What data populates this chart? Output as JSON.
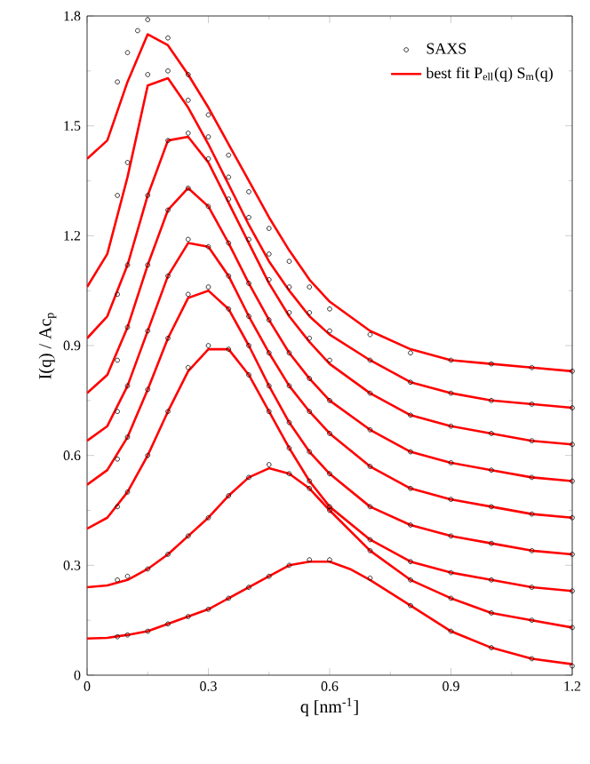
{
  "chart_data": {
    "type": "line",
    "xlabel": "q [nm$^{-1}$]",
    "ylabel": "I(q) / Ac$_{p}$",
    "xlim": [
      0,
      1.2
    ],
    "ylim": [
      0,
      1.8
    ],
    "xticks": [
      0,
      0.3,
      0.6,
      0.9,
      1.2
    ],
    "yticks": [
      0,
      0.3,
      0.6,
      0.9,
      1.2,
      1.5,
      1.8
    ],
    "legend": "top right",
    "grid": false,
    "series": [
      {
        "name": "SAXS",
        "type": "scatter",
        "marker": "circle",
        "color": "#000000",
        "x": [
          0.075,
          0.1,
          0.15,
          0.2,
          0.25,
          0.3,
          0.35,
          0.4,
          0.45,
          0.5,
          0.55,
          0.6,
          0.7,
          0.8,
          0.9,
          1.0,
          1.1,
          1.2
        ],
        "values": [
          0.105,
          0.11,
          0.12,
          0.14,
          0.16,
          0.18,
          0.21,
          0.24,
          0.27,
          0.3,
          0.315,
          0.315,
          0.265,
          0.19,
          0.12,
          0.075,
          0.045,
          0.025
        ]
      },
      {
        "type": "scatter",
        "marker": "circle",
        "color": "#000000",
        "x": [
          0.075,
          0.1,
          0.15,
          0.2,
          0.25,
          0.3,
          0.35,
          0.4,
          0.45,
          0.5,
          0.55,
          0.6,
          0.7,
          0.8,
          0.9,
          1.0,
          1.1,
          1.2
        ],
        "values": [
          0.26,
          0.27,
          0.29,
          0.33,
          0.38,
          0.43,
          0.49,
          0.54,
          0.575,
          0.55,
          0.51,
          0.45,
          0.34,
          0.26,
          0.21,
          0.17,
          0.15,
          0.13
        ]
      },
      {
        "type": "scatter",
        "marker": "circle",
        "color": "#000000",
        "x": [
          0.075,
          0.1,
          0.15,
          0.2,
          0.25,
          0.3,
          0.35,
          0.4,
          0.45,
          0.5,
          0.55,
          0.6,
          0.7,
          0.8,
          0.9,
          1.0,
          1.1,
          1.2
        ],
        "values": [
          0.46,
          0.5,
          0.6,
          0.72,
          0.84,
          0.9,
          0.89,
          0.82,
          0.72,
          0.62,
          0.53,
          0.46,
          0.37,
          0.31,
          0.28,
          0.26,
          0.24,
          0.23
        ]
      },
      {
        "type": "scatter",
        "marker": "circle",
        "color": "#000000",
        "x": [
          0.075,
          0.1,
          0.15,
          0.2,
          0.25,
          0.3,
          0.35,
          0.4,
          0.45,
          0.5,
          0.55,
          0.6,
          0.7,
          0.8,
          0.9,
          1.0,
          1.1,
          1.2
        ],
        "values": [
          0.59,
          0.65,
          0.78,
          0.92,
          1.04,
          1.06,
          1.0,
          0.9,
          0.79,
          0.69,
          0.61,
          0.55,
          0.46,
          0.41,
          0.38,
          0.36,
          0.34,
          0.33
        ]
      },
      {
        "type": "scatter",
        "marker": "circle",
        "color": "#000000",
        "x": [
          0.075,
          0.1,
          0.15,
          0.2,
          0.25,
          0.3,
          0.35,
          0.4,
          0.45,
          0.5,
          0.55,
          0.6,
          0.7,
          0.8,
          0.9,
          1.0,
          1.1,
          1.2
        ],
        "values": [
          0.72,
          0.79,
          0.94,
          1.09,
          1.19,
          1.17,
          1.09,
          0.98,
          0.88,
          0.79,
          0.72,
          0.66,
          0.57,
          0.51,
          0.48,
          0.46,
          0.44,
          0.43
        ]
      },
      {
        "type": "scatter",
        "marker": "circle",
        "color": "#000000",
        "x": [
          0.075,
          0.1,
          0.15,
          0.2,
          0.25,
          0.3,
          0.35,
          0.4,
          0.45,
          0.5,
          0.55,
          0.6,
          0.7,
          0.8,
          0.9,
          1.0,
          1.1,
          1.2
        ],
        "values": [
          0.86,
          0.95,
          1.12,
          1.27,
          1.33,
          1.28,
          1.18,
          1.07,
          0.97,
          0.88,
          0.81,
          0.75,
          0.67,
          0.61,
          0.58,
          0.56,
          0.54,
          0.53
        ]
      },
      {
        "type": "scatter",
        "marker": "circle",
        "color": "#000000",
        "x": [
          0.075,
          0.1,
          0.15,
          0.2,
          0.25,
          0.3,
          0.35,
          0.4,
          0.45,
          0.5,
          0.55,
          0.6,
          0.7,
          0.8,
          0.9,
          1.0,
          1.1,
          1.2
        ],
        "values": [
          1.04,
          1.12,
          1.31,
          1.46,
          1.48,
          1.41,
          1.3,
          1.19,
          1.08,
          0.99,
          0.92,
          0.86,
          0.77,
          0.71,
          0.68,
          0.66,
          0.64,
          0.63
        ]
      },
      {
        "type": "scatter",
        "marker": "circle",
        "color": "#000000",
        "x": [
          0.075,
          0.1,
          0.15,
          0.2,
          0.25,
          0.3,
          0.35,
          0.4,
          0.45,
          0.5,
          0.55,
          0.6,
          0.7,
          0.8,
          0.9,
          1.0,
          1.1,
          1.2
        ],
        "values": [
          1.31,
          1.4,
          1.64,
          1.65,
          1.57,
          1.47,
          1.36,
          1.25,
          1.15,
          1.06,
          0.99,
          0.94,
          0.86,
          0.8,
          0.77,
          0.75,
          0.74,
          0.73
        ]
      },
      {
        "type": "scatter",
        "marker": "circle",
        "color": "#000000",
        "x": [
          0.075,
          0.1,
          0.125,
          0.15,
          0.2,
          0.25,
          0.3,
          0.35,
          0.4,
          0.45,
          0.5,
          0.55,
          0.6,
          0.7,
          0.8,
          0.9,
          1.0,
          1.1,
          1.2
        ],
        "values": [
          1.62,
          1.7,
          1.76,
          1.79,
          1.74,
          1.64,
          1.53,
          1.42,
          1.32,
          1.22,
          1.13,
          1.06,
          1.0,
          0.93,
          0.88,
          0.86,
          0.85,
          0.84,
          0.83
        ]
      },
      {
        "name": "best fit P$_{ell}$(q) S$_{m}$(q)",
        "marker": "none",
        "line_style": "solid",
        "color": "#ff0000",
        "x": [
          0,
          0.05,
          0.1,
          0.15,
          0.2,
          0.25,
          0.3,
          0.35,
          0.4,
          0.45,
          0.5,
          0.55,
          0.6,
          0.65,
          0.7,
          0.8,
          0.9,
          1.0,
          1.1,
          1.2
        ],
        "values": [
          0.1,
          0.102,
          0.11,
          0.12,
          0.14,
          0.16,
          0.18,
          0.21,
          0.24,
          0.27,
          0.3,
          0.31,
          0.31,
          0.29,
          0.26,
          0.19,
          0.12,
          0.075,
          0.045,
          0.03
        ]
      },
      {
        "type": "line",
        "marker": "none",
        "line_style": "solid",
        "color": "#ff0000",
        "x": [
          0,
          0.05,
          0.1,
          0.15,
          0.2,
          0.25,
          0.3,
          0.35,
          0.4,
          0.45,
          0.5,
          0.55,
          0.6,
          0.7,
          0.8,
          0.9,
          1.0,
          1.1,
          1.2
        ],
        "values": [
          0.24,
          0.245,
          0.26,
          0.29,
          0.33,
          0.38,
          0.43,
          0.49,
          0.54,
          0.565,
          0.55,
          0.51,
          0.45,
          0.34,
          0.26,
          0.21,
          0.17,
          0.15,
          0.13
        ]
      },
      {
        "type": "line",
        "marker": "none",
        "line_style": "solid",
        "color": "#ff0000",
        "x": [
          0,
          0.05,
          0.1,
          0.15,
          0.2,
          0.25,
          0.3,
          0.35,
          0.4,
          0.45,
          0.5,
          0.55,
          0.6,
          0.7,
          0.8,
          0.9,
          1.0,
          1.1,
          1.2
        ],
        "values": [
          0.4,
          0.43,
          0.5,
          0.6,
          0.72,
          0.83,
          0.89,
          0.89,
          0.82,
          0.72,
          0.62,
          0.53,
          0.46,
          0.37,
          0.31,
          0.28,
          0.26,
          0.24,
          0.23
        ]
      },
      {
        "type": "line",
        "marker": "none",
        "line_style": "solid",
        "color": "#ff0000",
        "x": [
          0,
          0.05,
          0.1,
          0.15,
          0.2,
          0.25,
          0.3,
          0.35,
          0.4,
          0.45,
          0.5,
          0.55,
          0.6,
          0.7,
          0.8,
          0.9,
          1.0,
          1.1,
          1.2
        ],
        "values": [
          0.52,
          0.56,
          0.65,
          0.78,
          0.92,
          1.03,
          1.05,
          1.0,
          0.9,
          0.79,
          0.69,
          0.61,
          0.55,
          0.46,
          0.41,
          0.38,
          0.36,
          0.34,
          0.33
        ]
      },
      {
        "type": "line",
        "marker": "none",
        "line_style": "solid",
        "color": "#ff0000",
        "x": [
          0,
          0.05,
          0.1,
          0.15,
          0.2,
          0.25,
          0.3,
          0.35,
          0.4,
          0.45,
          0.5,
          0.55,
          0.6,
          0.7,
          0.8,
          0.9,
          1.0,
          1.1,
          1.2
        ],
        "values": [
          0.64,
          0.68,
          0.79,
          0.94,
          1.09,
          1.18,
          1.17,
          1.09,
          0.98,
          0.88,
          0.79,
          0.72,
          0.66,
          0.57,
          0.51,
          0.48,
          0.46,
          0.44,
          0.43
        ]
      },
      {
        "type": "line",
        "marker": "none",
        "line_style": "solid",
        "color": "#ff0000",
        "x": [
          0,
          0.05,
          0.1,
          0.15,
          0.2,
          0.25,
          0.3,
          0.35,
          0.4,
          0.45,
          0.5,
          0.55,
          0.6,
          0.7,
          0.8,
          0.9,
          1.0,
          1.1,
          1.2
        ],
        "values": [
          0.77,
          0.82,
          0.95,
          1.12,
          1.27,
          1.33,
          1.28,
          1.18,
          1.07,
          0.97,
          0.88,
          0.81,
          0.75,
          0.67,
          0.61,
          0.58,
          0.56,
          0.54,
          0.53
        ]
      },
      {
        "type": "line",
        "marker": "none",
        "line_style": "solid",
        "color": "#ff0000",
        "x": [
          0,
          0.05,
          0.1,
          0.15,
          0.2,
          0.25,
          0.3,
          0.35,
          0.4,
          0.45,
          0.5,
          0.55,
          0.6,
          0.7,
          0.8,
          0.9,
          1.0,
          1.1,
          1.2
        ],
        "values": [
          0.92,
          0.98,
          1.12,
          1.31,
          1.46,
          1.47,
          1.4,
          1.29,
          1.18,
          1.07,
          0.98,
          0.91,
          0.85,
          0.77,
          0.71,
          0.68,
          0.66,
          0.64,
          0.63
        ]
      },
      {
        "type": "line",
        "marker": "none",
        "line_style": "solid",
        "color": "#ff0000",
        "x": [
          0,
          0.05,
          0.1,
          0.15,
          0.2,
          0.25,
          0.3,
          0.35,
          0.4,
          0.45,
          0.5,
          0.55,
          0.6,
          0.7,
          0.8,
          0.9,
          1.0,
          1.1,
          1.2
        ],
        "values": [
          1.06,
          1.15,
          1.36,
          1.61,
          1.63,
          1.55,
          1.45,
          1.34,
          1.23,
          1.13,
          1.05,
          0.98,
          0.93,
          0.86,
          0.8,
          0.77,
          0.75,
          0.74,
          0.73
        ]
      },
      {
        "type": "line",
        "marker": "none",
        "line_style": "solid",
        "color": "#ff0000",
        "x": [
          0,
          0.05,
          0.1,
          0.15,
          0.2,
          0.25,
          0.3,
          0.35,
          0.4,
          0.45,
          0.5,
          0.55,
          0.6,
          0.7,
          0.8,
          0.9,
          1.0,
          1.1,
          1.2
        ],
        "values": [
          1.41,
          1.46,
          1.62,
          1.75,
          1.72,
          1.64,
          1.55,
          1.45,
          1.35,
          1.25,
          1.16,
          1.08,
          1.02,
          0.94,
          0.89,
          0.86,
          0.85,
          0.84,
          0.83
        ]
      }
    ]
  }
}
